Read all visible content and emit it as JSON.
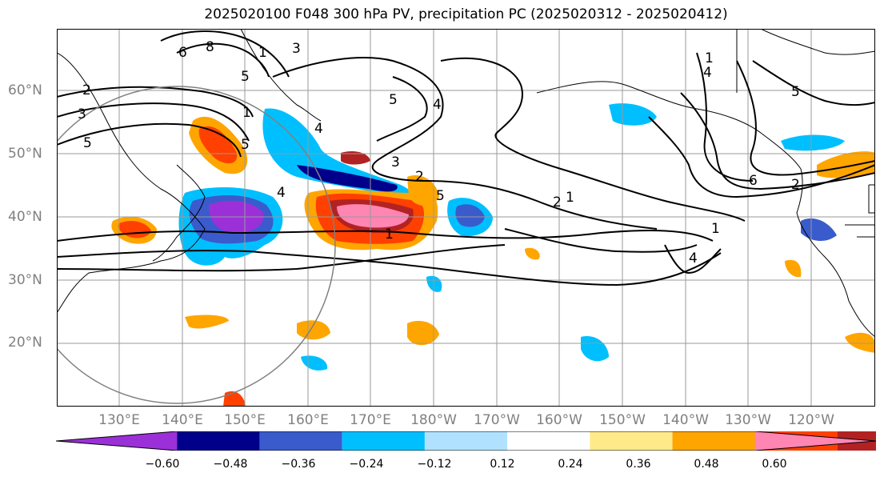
{
  "title": "2025020100 F048 300 hPa PV, precipitation PC (2025020312 - 2025020412)",
  "lat_labels": [
    "60°N",
    "50°N",
    "40°N",
    "30°N",
    "20°N"
  ],
  "lon_labels": [
    "130°E",
    "140°E",
    "150°E",
    "160°E",
    "170°E",
    "180°W",
    "170°W",
    "160°W",
    "150°W",
    "140°W",
    "130°W",
    "120°W"
  ],
  "contour_labels": [
    "2",
    "3",
    "5",
    "6",
    "8",
    "1",
    "3",
    "5",
    "4",
    "1",
    "4",
    "5",
    "4",
    "3",
    "2",
    "5",
    "1",
    "1",
    "2",
    "1",
    "4",
    "1",
    "6",
    "5",
    "2",
    "5",
    "4"
  ],
  "colorbar": {
    "ticks": [
      "−0.60",
      "−0.48",
      "−0.36",
      "−0.24",
      "−0.12",
      "0.12",
      "0.24",
      "0.36",
      "0.48",
      "0.60"
    ],
    "colors": [
      "#9b30d9",
      "#00008b",
      "#3a5bcc",
      "#00bfff",
      "#b0e2ff",
      "#ffffff",
      "#ffea8a",
      "#ffa500",
      "#ff4000",
      "#b22222",
      "#ff85b3"
    ]
  }
}
